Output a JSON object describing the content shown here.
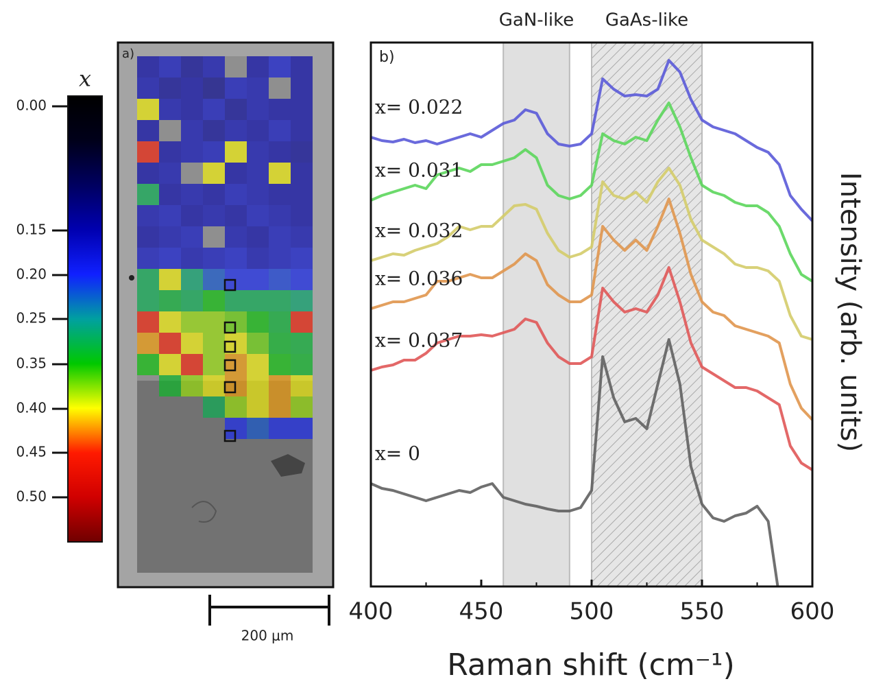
{
  "chart_data": [
    {
      "type": "heatmap",
      "annotation": "a)",
      "clabel": "x",
      "scalebar": "200 μm",
      "colormap": [
        "#000000",
        "#00001a",
        "#000060",
        "#0000b0",
        "#1020ff",
        "#00a0a0",
        "#00c800",
        "#ffff00",
        "#ff1a00",
        "#d00000",
        "#700000"
      ],
      "cticks": [
        {
          "value": 0,
          "label": "0.00"
        },
        0.15,
        {
          "value": 0.2,
          "label": "0.20"
        },
        0.25,
        0.35,
        {
          "value": 0.4,
          "label": "0.40"
        },
        0.45,
        {
          "value": 0.5,
          "label": "0.50"
        }
      ],
      "values": [
        [
          0.15,
          0.17,
          0.14,
          0.16,
          null,
          0.15,
          0.18,
          0.15
        ],
        [
          0.16,
          0.14,
          0.15,
          0.13,
          0.17,
          0.16,
          null,
          0.15
        ],
        [
          0.4,
          0.16,
          0.15,
          0.17,
          0.14,
          0.16,
          0.15,
          0.15
        ],
        [
          0.15,
          null,
          0.16,
          0.14,
          0.16,
          0.15,
          0.17,
          0.15
        ],
        [
          0.45,
          0.15,
          0.16,
          0.17,
          0.4,
          0.16,
          0.15,
          0.14
        ],
        [
          0.15,
          0.16,
          null,
          0.4,
          0.15,
          0.16,
          0.4,
          0.15
        ],
        [
          0.3,
          0.15,
          0.16,
          0.15,
          0.17,
          0.16,
          0.15,
          0.15
        ],
        [
          0.16,
          0.17,
          0.15,
          0.16,
          0.15,
          0.17,
          0.16,
          0.15
        ],
        [
          0.15,
          0.16,
          0.17,
          null,
          0.16,
          0.15,
          0.17,
          0.16
        ],
        [
          0.17,
          0.18,
          0.16,
          0.17,
          0.18,
          0.16,
          0.17,
          0.18
        ],
        [
          0.3,
          0.4,
          0.28,
          0.22,
          0.2,
          0.2,
          0.21,
          0.2
        ],
        [
          0.3,
          0.32,
          0.3,
          0.35,
          0.3,
          0.3,
          0.3,
          0.28
        ],
        [
          0.45,
          0.4,
          0.38,
          0.38,
          0.37,
          0.35,
          0.32,
          0.45
        ],
        [
          0.42,
          0.45,
          0.4,
          0.38,
          0.4,
          0.37,
          0.33,
          0.32
        ],
        [
          0.35,
          0.4,
          0.45,
          0.38,
          0.42,
          0.4,
          0.35,
          0.33
        ],
        [
          null,
          0.33,
          0.38,
          0.4,
          0.42,
          0.4,
          0.42,
          0.4
        ],
        [
          null,
          null,
          null,
          0.3,
          0.38,
          0.4,
          0.42,
          0.38
        ],
        [
          null,
          null,
          null,
          null,
          0.2,
          0.22,
          0.2,
          0.2
        ]
      ]
    },
    {
      "type": "line",
      "annotation": "b)",
      "xlabel": "Raman shift (cm⁻¹)",
      "ylabel": "Intensity (arb. units)",
      "xlim": [
        400,
        600
      ],
      "xticks": [
        400,
        450,
        500,
        550,
        600
      ],
      "xminorticks": [
        425,
        475,
        525,
        575
      ],
      "ylim": [
        0,
        793
      ],
      "bands": [
        {
          "label": "GaN-like",
          "range": [
            460,
            490
          ]
        },
        {
          "label": "GaAs-like",
          "range": [
            500,
            550
          ]
        }
      ],
      "x": [
        400,
        405,
        410,
        415,
        420,
        425,
        430,
        435,
        440,
        445,
        450,
        455,
        460,
        465,
        470,
        475,
        480,
        485,
        490,
        495,
        500,
        505,
        510,
        515,
        520,
        525,
        530,
        535,
        540,
        545,
        550,
        555,
        560,
        565,
        570,
        575,
        580,
        585,
        590,
        595,
        600
      ],
      "series": [
        {
          "name": "x= 0.022",
          "color": "#5a5ad8",
          "values": [
            655,
            650,
            648,
            652,
            647,
            650,
            645,
            650,
            655,
            660,
            655,
            665,
            675,
            680,
            695,
            690,
            660,
            645,
            642,
            645,
            660,
            740,
            725,
            715,
            717,
            715,
            725,
            767,
            750,
            710,
            680,
            670,
            665,
            660,
            650,
            640,
            633,
            615,
            570,
            550,
            533
          ]
        },
        {
          "name": "x= 0.031",
          "color": "#5cd65c",
          "values": [
            563,
            570,
            575,
            580,
            585,
            580,
            600,
            605,
            610,
            605,
            615,
            615,
            620,
            625,
            637,
            625,
            585,
            570,
            565,
            570,
            585,
            660,
            650,
            645,
            655,
            650,
            680,
            705,
            670,
            625,
            585,
            575,
            570,
            560,
            555,
            555,
            545,
            525,
            485,
            455,
            445
          ]
        },
        {
          "name": "x= 0.032",
          "color": "#d4cc6a",
          "values": [
            475,
            480,
            485,
            483,
            490,
            495,
            500,
            510,
            525,
            520,
            525,
            525,
            540,
            555,
            557,
            550,
            515,
            490,
            480,
            485,
            495,
            590,
            570,
            565,
            575,
            560,
            590,
            610,
            585,
            535,
            505,
            495,
            485,
            470,
            465,
            465,
            460,
            445,
            395,
            365,
            360
          ]
        },
        {
          "name": "x= 0.036",
          "color": "#e0964e",
          "values": [
            405,
            410,
            415,
            415,
            420,
            425,
            445,
            445,
            450,
            455,
            450,
            450,
            460,
            470,
            485,
            475,
            440,
            425,
            415,
            415,
            425,
            525,
            505,
            490,
            505,
            490,
            525,
            565,
            515,
            455,
            415,
            400,
            395,
            380,
            375,
            370,
            365,
            355,
            295,
            260,
            243
          ]
        },
        {
          "name": "x= 0.037",
          "color": "#e05858",
          "values": [
            315,
            320,
            323,
            330,
            330,
            340,
            355,
            360,
            365,
            365,
            367,
            365,
            370,
            375,
            390,
            385,
            355,
            335,
            325,
            325,
            335,
            435,
            415,
            400,
            405,
            400,
            425,
            465,
            415,
            355,
            320,
            310,
            300,
            290,
            290,
            285,
            275,
            265,
            205,
            180,
            170
          ]
        },
        {
          "name": "x= 0",
          "color": "#606060",
          "values": [
            150,
            143,
            140,
            135,
            130,
            125,
            130,
            135,
            140,
            137,
            145,
            150,
            130,
            125,
            120,
            117,
            113,
            110,
            110,
            115,
            140,
            335,
            275,
            240,
            245,
            230,
            295,
            360,
            295,
            175,
            120,
            100,
            95,
            103,
            107,
            117,
            95,
            -15,
            null,
            null,
            null
          ]
        }
      ]
    }
  ]
}
